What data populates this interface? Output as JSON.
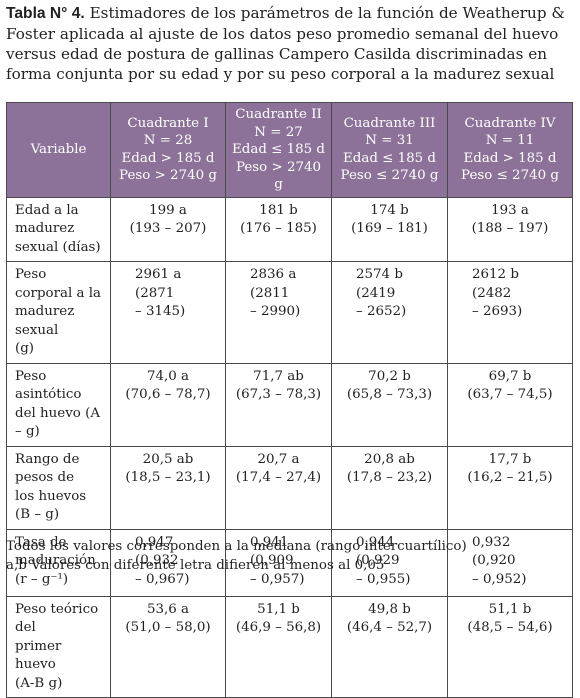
{
  "caption": {
    "label": "Tabla N° 4.",
    "text": "Estimadores de los parámetros de la función de Weatherup & Foster aplicada al ajuste de los datos peso promedio semanal del huevo versus edad de postura de gallinas Campero Casilda discriminadas en forma conjunta por su edad y por su peso corporal a la madurez sexual"
  },
  "header": {
    "variable": "Variable",
    "columns": [
      [
        "Cuadrante I",
        "N = 28",
        "Edad > 185 d",
        "Peso > 2740 g"
      ],
      [
        "Cuadrante II",
        "N = 27",
        "Edad ≤ 185 d",
        "Peso > 2740 g"
      ],
      [
        "Cuadrante III",
        "N = 31",
        "Edad ≤ 185 d",
        "Peso ≤ 2740 g"
      ],
      [
        "Cuadrante IV",
        "N = 11",
        "Edad > 185 d",
        "Peso ≤ 2740 g"
      ]
    ]
  },
  "rows": [
    {
      "label": [
        "Edad a la madurez",
        "sexual (días)"
      ],
      "cells": [
        [
          "199 a",
          "(193 – 207)"
        ],
        [
          "181 b",
          "(176 – 185)"
        ],
        [
          "174 b",
          "(169 – 181)"
        ],
        [
          "193 a",
          "(188 – 197)"
        ]
      ]
    },
    {
      "label": [
        "Peso corporal a la",
        "madurez sexual",
        "(g)"
      ],
      "cells": [
        [
          "2961 a",
          "(2871",
          "– 3145)"
        ],
        [
          "2836 a",
          "(2811",
          "– 2990)"
        ],
        [
          "2574 b",
          "(2419",
          "– 2652)"
        ],
        [
          "2612 b",
          "(2482",
          "– 2693)"
        ]
      ]
    },
    {
      "label": [
        "Peso asintótico",
        "del huevo (A – g)"
      ],
      "cells": [
        [
          "74,0 a",
          "(70,6 – 78,7)"
        ],
        [
          "71,7 ab",
          "(67,3 – 78,3)"
        ],
        [
          "70,2 b",
          "(65,8 – 73,3)"
        ],
        [
          "69,7 b",
          "(63,7 – 74,5)"
        ]
      ]
    },
    {
      "label": [
        "Rango de pesos de",
        "los huevos (B – g)"
      ],
      "cells": [
        [
          "20,5 ab",
          "(18,5 – 23,1)"
        ],
        [
          "20,7 a",
          "(17,4 – 27,4)"
        ],
        [
          "20,8 ab",
          "(17,8 – 23,2)"
        ],
        [
          "17,7 b",
          "(16,2 – 21,5)"
        ]
      ]
    },
    {
      "label": [
        "Tasa de",
        "maduración",
        "(r – g⁻¹)"
      ],
      "cells": [
        [
          "0,947",
          "(0,932",
          "– 0,967)"
        ],
        [
          "0,941",
          "(0,909",
          "– 0,957)"
        ],
        [
          "0,944",
          "(0,929",
          "– 0,955)"
        ],
        [
          "0,932",
          "(0,920",
          "– 0,952)"
        ]
      ]
    },
    {
      "label": [
        "Peso teórico del",
        "primer huevo",
        "(A-B g)"
      ],
      "cells": [
        [
          "53,6 a",
          "(51,0 – 58,0)"
        ],
        [
          "51,1 b",
          "(46,9 – 56,8)"
        ],
        [
          "49,8 b",
          "(46,4 – 52,7)"
        ],
        [
          "51,1 b",
          "(48,5 – 54,6)"
        ]
      ]
    }
  ],
  "footnotes": [
    "Todos los valores corresponden a la mediana (rango intercuartílico)",
    "a,b Valores con diferente letra difieren al menos al 0,05"
  ],
  "colors": {
    "header_bg": "#8c7298",
    "header_text": "#ffffff",
    "border": "#4a4a4a"
  }
}
